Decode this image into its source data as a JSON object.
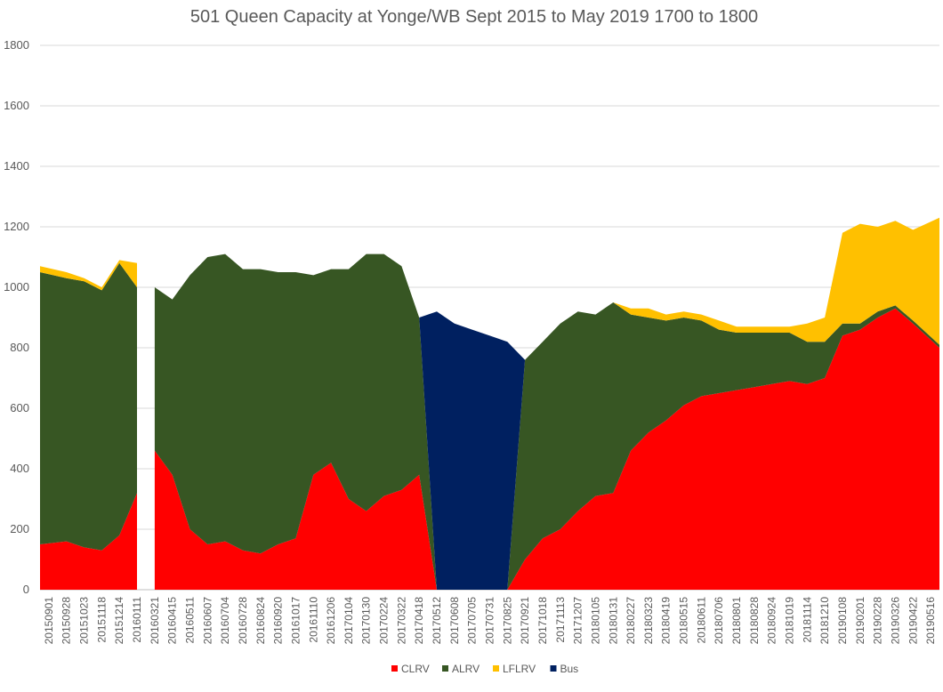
{
  "chart_data": {
    "type": "area",
    "stacked": true,
    "title": "501 Queen Capacity at Yonge/WB Sept 2015 to May 2019 1700 to 1800",
    "xlabel": "",
    "ylabel": "",
    "ylim": [
      0,
      1800
    ],
    "yticks": [
      0,
      200,
      400,
      600,
      800,
      1000,
      1200,
      1400,
      1600,
      1800
    ],
    "grid": true,
    "legend_position": "bottom",
    "x_categories": [
      "20150901",
      "20150928",
      "20151023",
      "20151118",
      "20151214",
      "20160111",
      "20160321",
      "20160415",
      "20160511",
      "20160607",
      "20160704",
      "20160728",
      "20160824",
      "20160920",
      "20161017",
      "20161110",
      "20161206",
      "20170104",
      "20170130",
      "20170224",
      "20170322",
      "20170418",
      "20170512",
      "20170608",
      "20170705",
      "20170731",
      "20170825",
      "20170921",
      "20171018",
      "20171113",
      "20171207",
      "20180105",
      "20180131",
      "20180227",
      "20180323",
      "20180419",
      "20180515",
      "20180611",
      "20180706",
      "20180801",
      "20180828",
      "20180924",
      "20181019",
      "20181114",
      "20181210",
      "20190108",
      "20190201",
      "20190228",
      "20190326",
      "20190422",
      "20190516"
    ],
    "colors": {
      "CLRV": "#ff0000",
      "ALRV": "#375623",
      "LFLRV": "#ffc000",
      "Bus": "#002060"
    },
    "series": [
      {
        "name": "CLRV",
        "values": [
          150,
          160,
          140,
          130,
          180,
          320,
          460,
          380,
          200,
          150,
          160,
          130,
          120,
          150,
          170,
          380,
          420,
          300,
          260,
          310,
          330,
          380,
          0,
          0,
          0,
          0,
          0,
          100,
          170,
          200,
          260,
          310,
          320,
          460,
          520,
          560,
          610,
          640,
          650,
          660,
          670,
          680,
          690,
          680,
          700,
          840,
          860,
          900,
          930,
          880,
          800
        ]
      },
      {
        "name": "ALRV",
        "values": [
          900,
          870,
          880,
          860,
          900,
          680,
          540,
          580,
          840,
          950,
          950,
          930,
          940,
          900,
          880,
          660,
          640,
          760,
          850,
          800,
          740,
          520,
          0,
          0,
          0,
          0,
          0,
          660,
          650,
          680,
          660,
          600,
          630,
          450,
          380,
          330,
          290,
          250,
          210,
          190,
          180,
          170,
          160,
          140,
          120,
          40,
          20,
          20,
          10,
          10,
          10
        ]
      },
      {
        "name": "LFLRV",
        "values": [
          20,
          20,
          10,
          10,
          10,
          80,
          0,
          0,
          0,
          0,
          0,
          0,
          0,
          0,
          0,
          0,
          0,
          0,
          0,
          0,
          0,
          0,
          0,
          0,
          0,
          0,
          0,
          0,
          0,
          0,
          0,
          0,
          0,
          20,
          30,
          20,
          20,
          20,
          30,
          20,
          20,
          20,
          20,
          60,
          80,
          300,
          330,
          280,
          280,
          300,
          420
        ]
      },
      {
        "name": "Bus",
        "values": [
          0,
          0,
          0,
          0,
          0,
          0,
          0,
          0,
          0,
          0,
          0,
          0,
          0,
          0,
          0,
          0,
          0,
          0,
          0,
          0,
          0,
          0,
          920,
          880,
          860,
          840,
          820,
          0,
          0,
          0,
          0,
          0,
          0,
          0,
          0,
          0,
          0,
          0,
          0,
          0,
          0,
          0,
          0,
          0,
          0,
          0,
          0,
          0,
          0,
          0,
          0
        ]
      }
    ],
    "gaps": [
      5
    ]
  }
}
